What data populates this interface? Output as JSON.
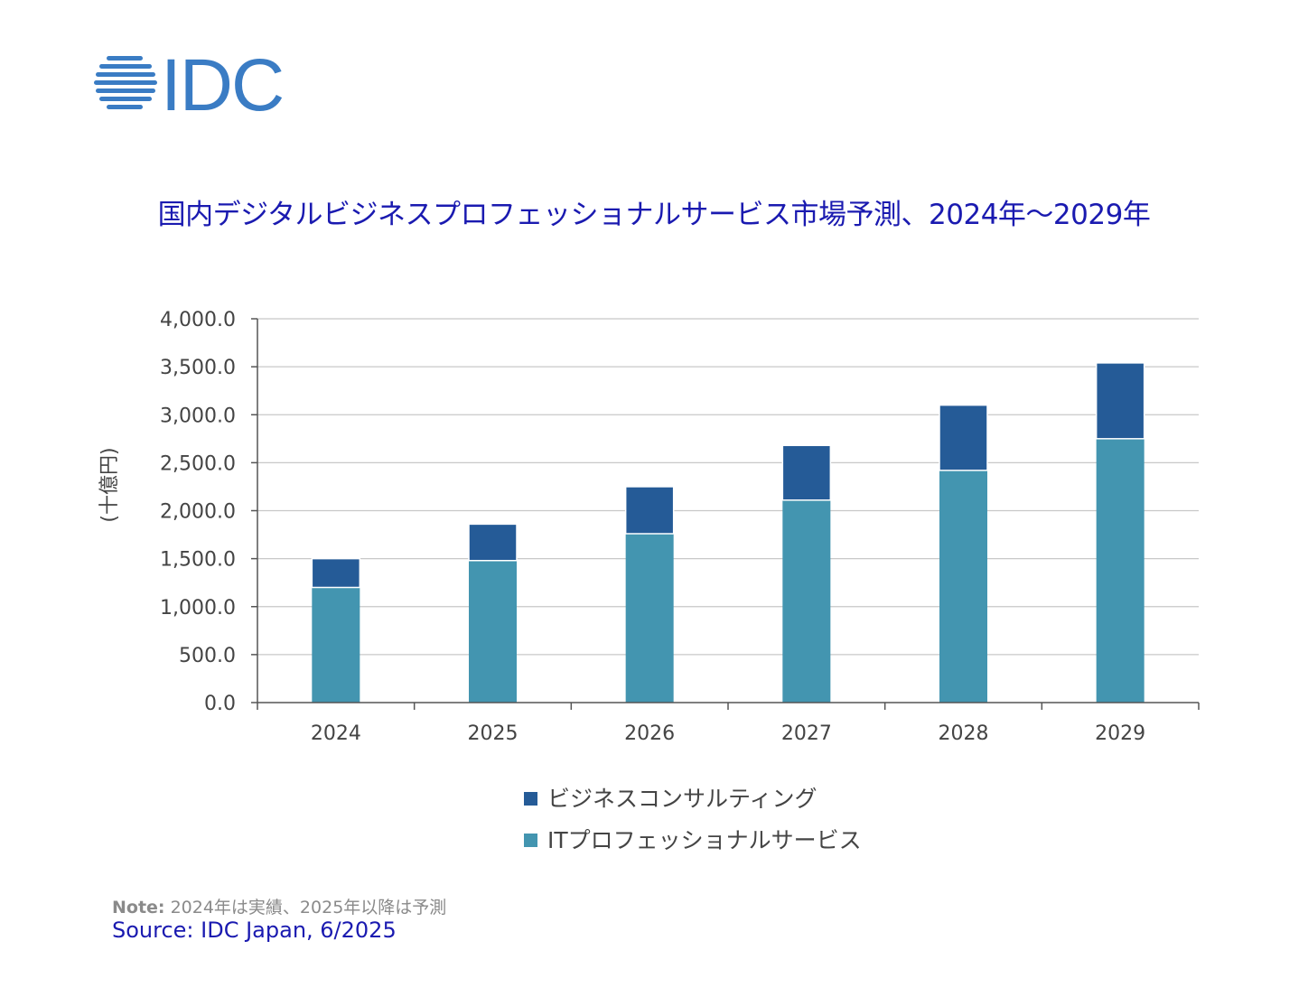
{
  "logo": {
    "text": "IDC",
    "color": "#3a7cc4"
  },
  "chart_data": {
    "type": "bar",
    "stacked": true,
    "title": "国内デジタルビジネスプロフェッショナルサービス市場予測、2024年～2029年",
    "ylabel": "(十億円)",
    "xlabel": "",
    "ylim": [
      0,
      4000
    ],
    "yticks": [
      0,
      500,
      1000,
      1500,
      2000,
      2500,
      3000,
      3500,
      4000
    ],
    "ytick_labels": [
      "0.0",
      "500.0",
      "1,000.0",
      "1,500.0",
      "2,000.0",
      "2,500.0",
      "3,000.0",
      "3,500.0",
      "4,000.0"
    ],
    "grid": true,
    "legend": "bottom",
    "categories": [
      "2024",
      "2025",
      "2026",
      "2027",
      "2028",
      "2029"
    ],
    "series": [
      {
        "name": "ITプロフェッショナルサービス",
        "color": "#4395b0",
        "values": [
          1200,
          1480,
          1760,
          2110,
          2420,
          2750
        ]
      },
      {
        "name": "ビジネスコンサルティング",
        "color": "#255b97",
        "values": [
          300,
          380,
          490,
          570,
          680,
          790
        ]
      }
    ],
    "legend_order": [
      1,
      0
    ]
  },
  "note": {
    "label": "Note:",
    "text": " 2024年は実績、2025年以降は予測"
  },
  "source": "Source: IDC Japan, 6/2025"
}
